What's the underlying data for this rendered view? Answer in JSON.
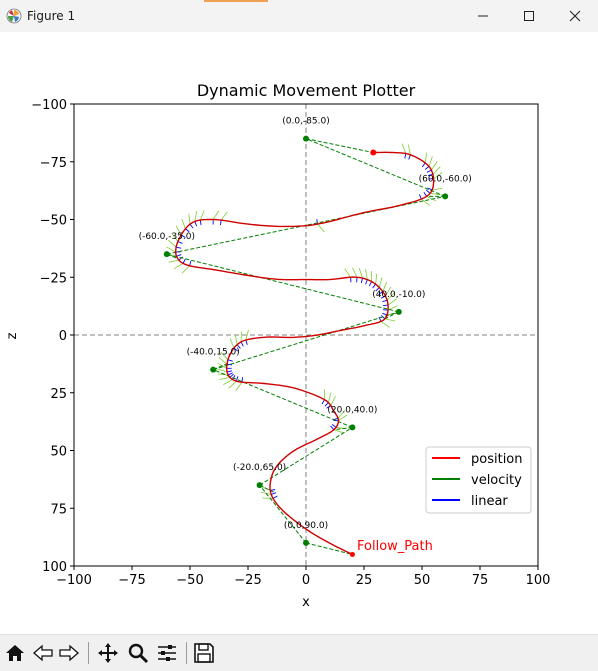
{
  "window": {
    "title": "Figure 1",
    "icons": [
      "matplotlib-icon",
      "minimize-icon",
      "maximize-icon",
      "close-icon"
    ]
  },
  "toolbar": {
    "tools": [
      "home-icon",
      "back-arrow-icon",
      "forward-arrow-icon",
      "pan-icon",
      "zoom-icon",
      "configure-subplots-icon",
      "save-icon"
    ]
  },
  "chart_data": {
    "type": "line",
    "title": "Dynamic Movement Plotter",
    "xlabel": "x",
    "ylabel": "z",
    "xlim": [
      -100,
      100
    ],
    "ylim": [
      -100,
      100
    ],
    "y_inverted": true,
    "xticks": [
      -100,
      -75,
      -50,
      -25,
      0,
      25,
      50,
      75,
      100
    ],
    "yticks": [
      -100,
      -75,
      -50,
      -25,
      0,
      25,
      50,
      75,
      100
    ],
    "grid": false,
    "reference_lines": {
      "x": 0,
      "z": 0,
      "style": "dashed",
      "color": "#808080"
    },
    "legend": {
      "placement": "lower-right",
      "entries": [
        {
          "label": "position",
          "color": "#ff0000"
        },
        {
          "label": "velocity",
          "color": "#008000"
        },
        {
          "label": "linear",
          "color": "#0000ff"
        }
      ]
    },
    "waypoints": {
      "color": "#008000",
      "points": [
        {
          "x": 0,
          "z": 90,
          "label": "(0.0,90.0)"
        },
        {
          "x": -20,
          "z": 65,
          "label": "(-20.0,65.0)"
        },
        {
          "x": 20,
          "z": 40,
          "label": "(20.0,40.0)"
        },
        {
          "x": -40,
          "z": 15,
          "label": "(-40.0,15.0)"
        },
        {
          "x": 40,
          "z": -10,
          "label": "(40.0,-10.0)"
        },
        {
          "x": -60,
          "z": -35,
          "label": "(-60.0,-35.0)"
        },
        {
          "x": 60,
          "z": -60,
          "label": "(60.0,-60.0)"
        },
        {
          "x": 0,
          "z": -85,
          "label": "(0.0,-85.0)"
        }
      ]
    },
    "path": {
      "start": {
        "x": 20,
        "z": 95
      },
      "end": {
        "x": 29,
        "z": -79
      },
      "annotation": "Follow_Path",
      "points": [
        [
          20,
          95
        ],
        [
          10,
          90
        ],
        [
          0,
          84
        ],
        [
          -10,
          76
        ],
        [
          -15,
          69
        ],
        [
          -15,
          62
        ],
        [
          -12,
          56
        ],
        [
          -5,
          50
        ],
        [
          5,
          45
        ],
        [
          12,
          41
        ],
        [
          14,
          37
        ],
        [
          12,
          33
        ],
        [
          8,
          28
        ],
        [
          -5,
          23
        ],
        [
          -18,
          21
        ],
        [
          -30,
          20
        ],
        [
          -34,
          16
        ],
        [
          -33,
          9
        ],
        [
          -28,
          3
        ],
        [
          -18,
          1
        ],
        [
          -5,
          1
        ],
        [
          5,
          0
        ],
        [
          15,
          -2
        ],
        [
          25,
          -4
        ],
        [
          34,
          -7
        ],
        [
          35,
          -15
        ],
        [
          30,
          -22
        ],
        [
          22,
          -25
        ],
        [
          10,
          -24
        ],
        [
          0,
          -24
        ],
        [
          -10,
          -24
        ],
        [
          -20,
          -25
        ],
        [
          -38,
          -28
        ],
        [
          -53,
          -31
        ],
        [
          -56,
          -38
        ],
        [
          -50,
          -48
        ],
        [
          -40,
          -50
        ],
        [
          -25,
          -48
        ],
        [
          -10,
          -47
        ],
        [
          5,
          -48
        ],
        [
          25,
          -53
        ],
        [
          40,
          -56
        ],
        [
          52,
          -60
        ],
        [
          55,
          -66
        ],
        [
          53,
          -73
        ],
        [
          45,
          -78
        ],
        [
          37,
          -79
        ],
        [
          29,
          -79
        ]
      ]
    }
  }
}
